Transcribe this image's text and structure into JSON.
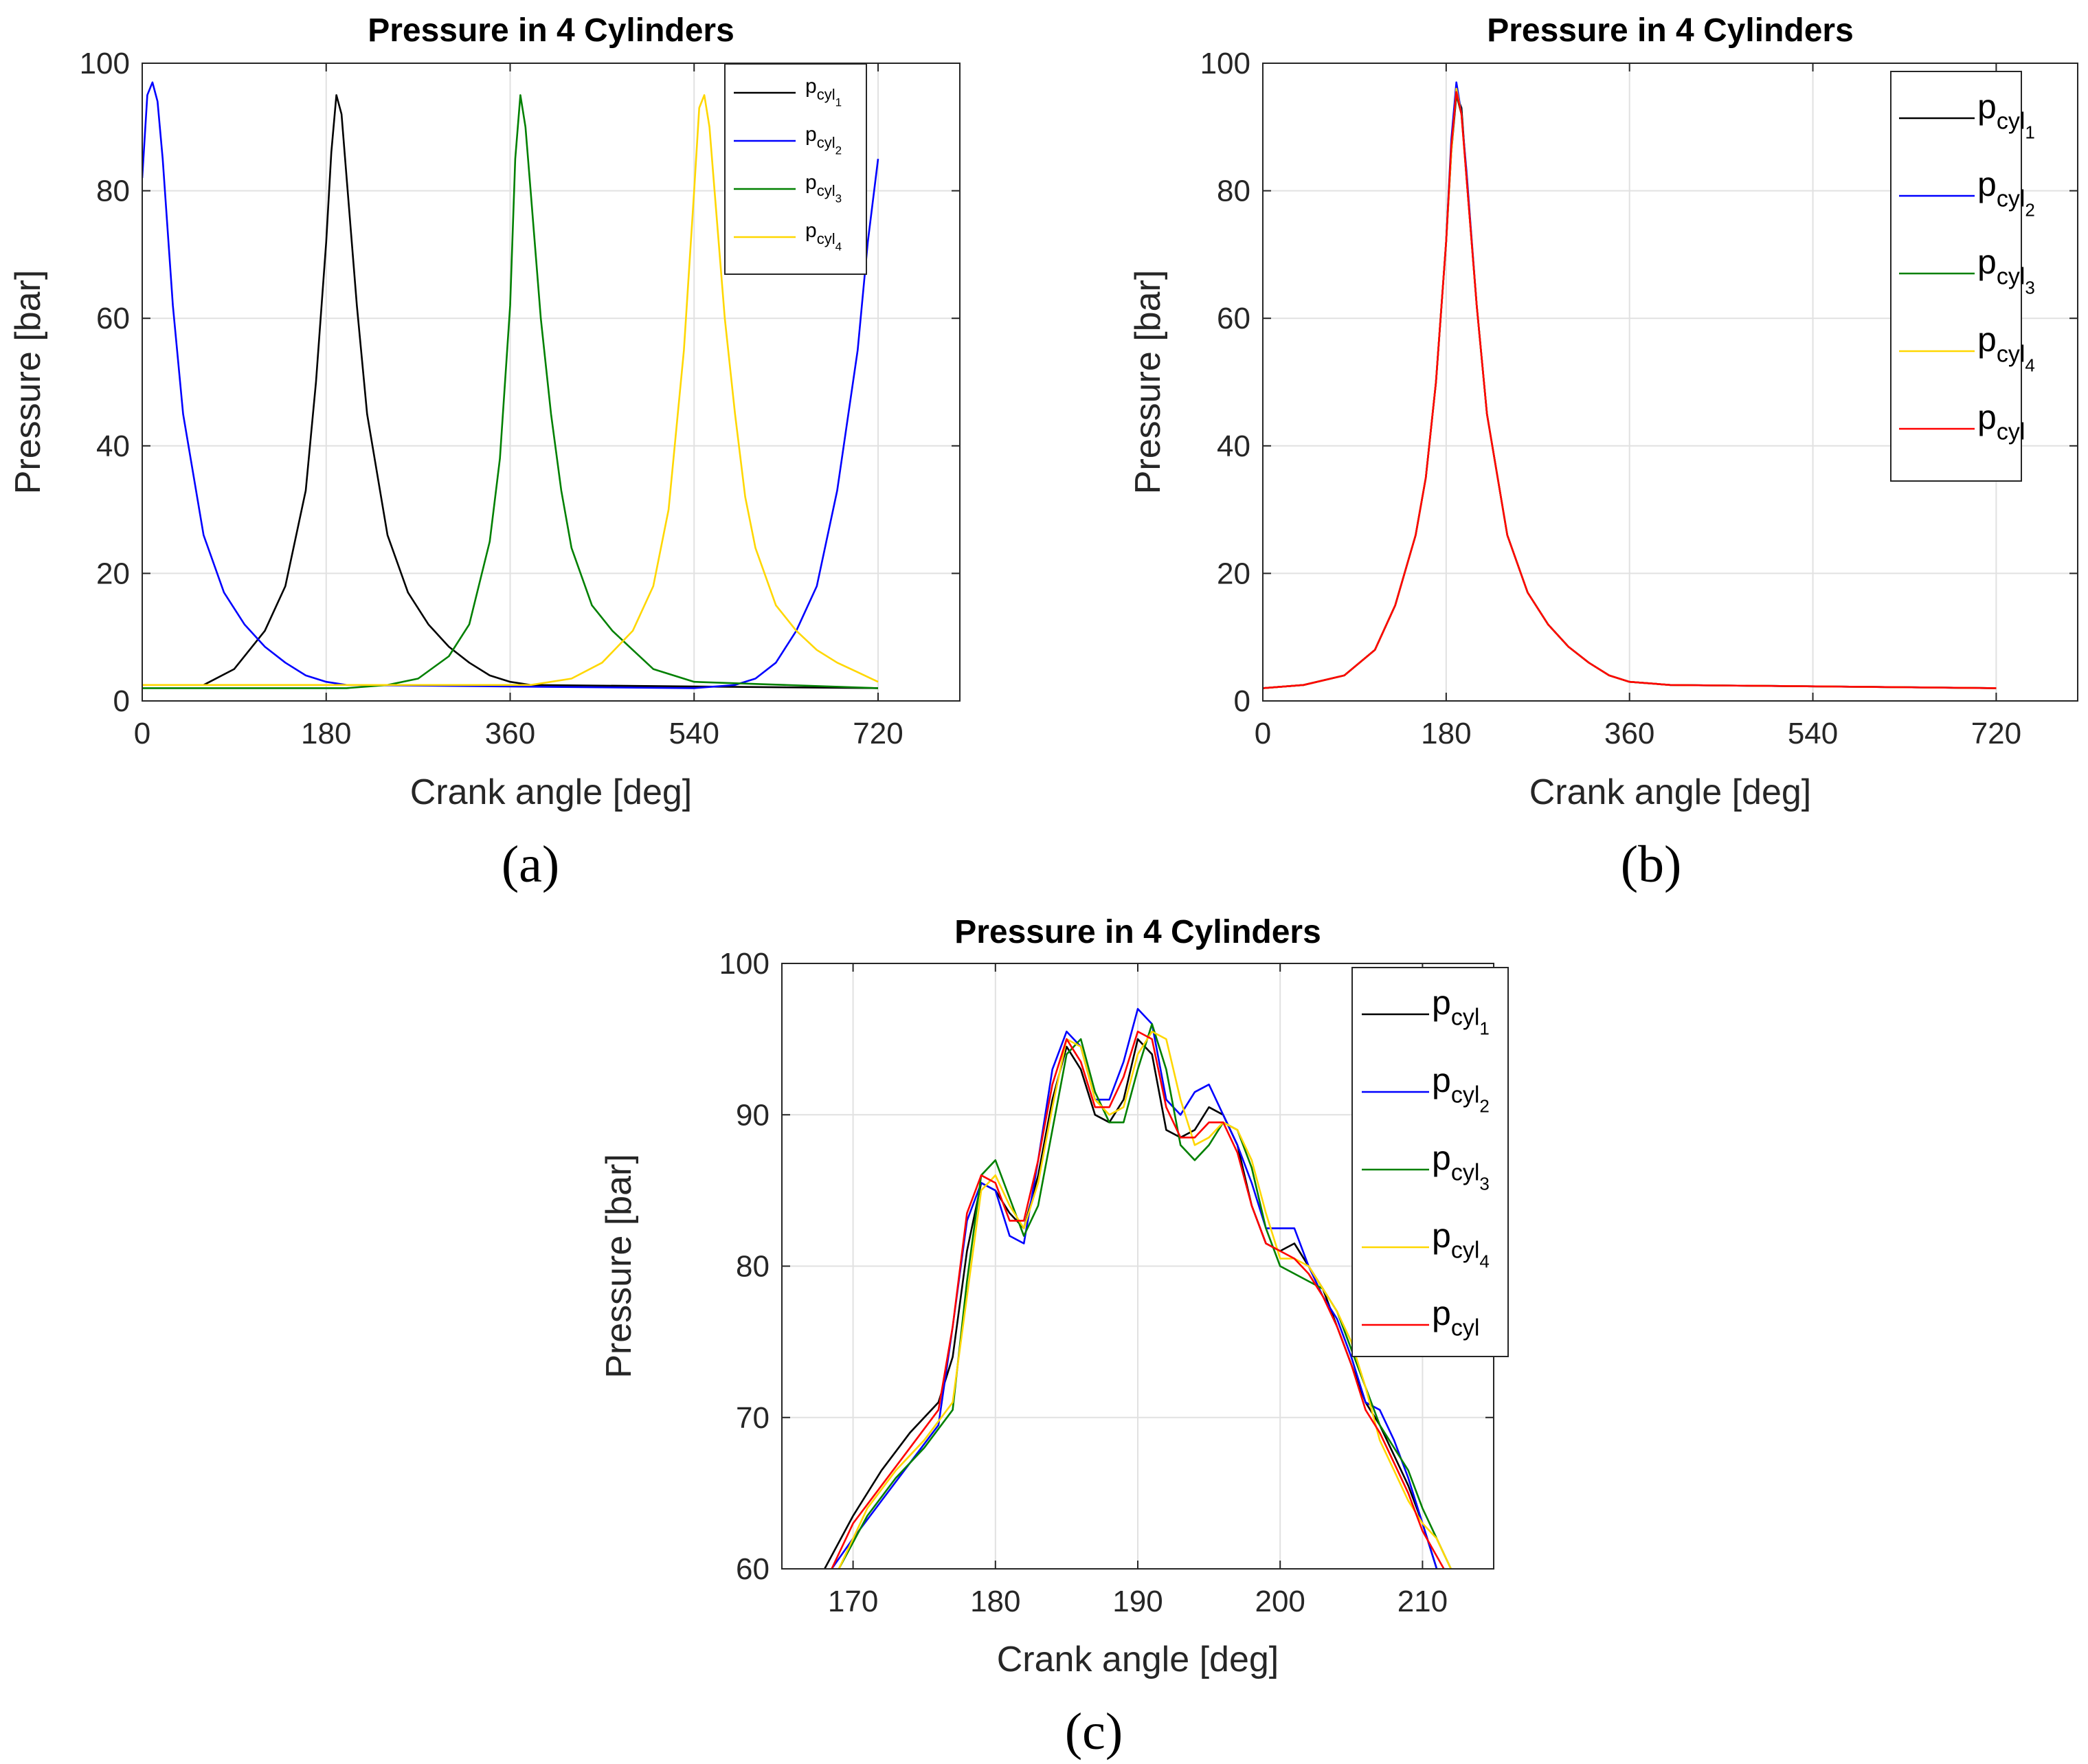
{
  "figure": {
    "caption_a": "(a)",
    "caption_b": "(b)",
    "caption_c": "(c)"
  },
  "colors": {
    "p_cyl1": "#000000",
    "p_cyl2": "#0000ff",
    "p_cyl3": "#008000",
    "p_cyl4": "#ffd700",
    "p_cyl": "#ff0000",
    "grid": "#e1e1e1",
    "axis": "#262626"
  },
  "chart_data": [
    {
      "id": "a",
      "type": "line",
      "title": "Pressure in 4 Cylinders",
      "xlabel": "Crank angle [deg]",
      "ylabel": "Pressure [bar]",
      "xlim": [
        0,
        800
      ],
      "ylim": [
        0,
        100
      ],
      "xticks": [
        0,
        180,
        360,
        540,
        720
      ],
      "yticks": [
        0,
        20,
        40,
        60,
        80,
        100
      ],
      "grid": true,
      "legend_position": "top-right",
      "series": [
        {
          "name": "p_cyl1",
          "label_base": "p",
          "label_sub": "cyl",
          "label_subsub": "1",
          "color_key": "p_cyl1",
          "x": [
            60,
            90,
            120,
            140,
            160,
            170,
            180,
            185,
            190,
            195,
            200,
            210,
            220,
            240,
            260,
            280,
            300,
            320,
            340,
            360,
            380,
            720
          ],
          "y": [
            2.5,
            5,
            11,
            18,
            33,
            50,
            72,
            86,
            95,
            92,
            82,
            62,
            45,
            26,
            17,
            12,
            8.5,
            6,
            4,
            3,
            2.5,
            2
          ]
        },
        {
          "name": "p_cyl2",
          "label_base": "p",
          "label_sub": "cyl",
          "label_subsub": "2",
          "color_key": "p_cyl2",
          "x": [
            0,
            5,
            10,
            15,
            20,
            30,
            40,
            60,
            80,
            100,
            120,
            140,
            160,
            180,
            200,
            540,
            580,
            600,
            620,
            640,
            660,
            680,
            700,
            710,
            720
          ],
          "y": [
            82,
            95,
            97,
            94,
            85,
            62,
            45,
            26,
            17,
            12,
            8.5,
            6,
            4,
            3,
            2.5,
            2,
            2.5,
            3.5,
            6,
            11,
            18,
            33,
            55,
            72,
            85
          ]
        },
        {
          "name": "p_cyl3",
          "label_base": "p",
          "label_sub": "cyl",
          "label_subsub": "3",
          "color_key": "p_cyl3",
          "x": [
            0,
            200,
            240,
            270,
            300,
            320,
            340,
            350,
            360,
            365,
            370,
            375,
            380,
            390,
            400,
            410,
            420,
            440,
            460,
            480,
            500,
            540,
            720
          ],
          "y": [
            2,
            2,
            2.5,
            3.5,
            7,
            12,
            25,
            38,
            62,
            85,
            95,
            90,
            80,
            60,
            45,
            33,
            24,
            15,
            11,
            8,
            5,
            3,
            2
          ]
        },
        {
          "name": "p_cyl4",
          "label_base": "p",
          "label_sub": "cyl",
          "label_subsub": "4",
          "color_key": "p_cyl4",
          "x": [
            0,
            380,
            420,
            450,
            480,
            500,
            515,
            530,
            540,
            545,
            550,
            555,
            560,
            570,
            580,
            590,
            600,
            620,
            640,
            660,
            680,
            700,
            720
          ],
          "y": [
            2.5,
            2.5,
            3.5,
            6,
            11,
            18,
            30,
            55,
            80,
            93,
            95,
            90,
            80,
            60,
            45,
            32,
            24,
            15,
            11,
            8,
            6,
            4.5,
            3
          ]
        }
      ]
    },
    {
      "id": "b",
      "type": "line",
      "title": "Pressure in 4 Cylinders",
      "xlabel": "Crank angle [deg]",
      "ylabel": "Pressure [bar]",
      "xlim": [
        0,
        800
      ],
      "ylim": [
        0,
        100
      ],
      "xticks": [
        0,
        180,
        360,
        540,
        720
      ],
      "yticks": [
        0,
        20,
        40,
        60,
        80,
        100
      ],
      "grid": true,
      "legend_position": "top-right",
      "series": [
        {
          "name": "p_cyl1",
          "label_base": "p",
          "label_sub": "cyl",
          "label_subsub": "1",
          "color_key": "p_cyl1",
          "x": [
            0,
            40,
            80,
            110,
            130,
            150,
            160,
            170,
            180,
            185,
            190,
            195,
            200,
            210,
            220,
            240,
            260,
            280,
            300,
            320,
            340,
            360,
            400,
            720
          ],
          "y": [
            2,
            2.5,
            4,
            8,
            15,
            26,
            35,
            50,
            72,
            86,
            95,
            93,
            82,
            62,
            45,
            26,
            17,
            12,
            8.5,
            6,
            4,
            3,
            2.5,
            2
          ]
        },
        {
          "name": "p_cyl2",
          "label_base": "p",
          "label_sub": "cyl",
          "label_subsub": "2",
          "color_key": "p_cyl2",
          "x": [
            0,
            40,
            80,
            110,
            130,
            150,
            160,
            170,
            180,
            185,
            190,
            195,
            200,
            210,
            220,
            240,
            260,
            280,
            300,
            320,
            340,
            360,
            400,
            720
          ],
          "y": [
            2,
            2.5,
            4,
            8,
            15,
            26,
            35,
            50,
            72,
            88,
            97,
            92,
            83,
            62,
            45,
            26,
            17,
            12,
            8.5,
            6,
            4,
            3,
            2.5,
            2
          ]
        },
        {
          "name": "p_cyl3",
          "label_base": "p",
          "label_sub": "cyl",
          "label_subsub": "3",
          "color_key": "p_cyl3",
          "x": [
            0,
            40,
            80,
            110,
            130,
            150,
            160,
            170,
            180,
            185,
            190,
            195,
            200,
            210,
            220,
            240,
            260,
            280,
            300,
            320,
            340,
            360,
            400,
            720
          ],
          "y": [
            2,
            2.5,
            4,
            8,
            15,
            26,
            35,
            50,
            72,
            87,
            95,
            92,
            82,
            62,
            45,
            26,
            17,
            12,
            8.5,
            6,
            4,
            3,
            2.5,
            2
          ]
        },
        {
          "name": "p_cyl4",
          "label_base": "p",
          "label_sub": "cyl",
          "label_subsub": "4",
          "color_key": "p_cyl4",
          "x": [
            0,
            40,
            80,
            110,
            130,
            150,
            160,
            170,
            180,
            185,
            190,
            195,
            200,
            210,
            220,
            240,
            260,
            280,
            300,
            320,
            340,
            360,
            400,
            720
          ],
          "y": [
            2,
            2.5,
            4,
            8,
            15,
            26,
            35,
            50,
            72,
            86,
            96,
            92,
            82,
            62,
            45,
            26,
            17,
            12,
            8.5,
            6,
            4,
            3,
            2.5,
            2
          ]
        },
        {
          "name": "p_cyl",
          "label_base": "p",
          "label_sub": "cyl",
          "label_subsub": "",
          "color_key": "p_cyl",
          "x": [
            0,
            40,
            80,
            110,
            130,
            150,
            160,
            170,
            180,
            185,
            190,
            195,
            200,
            210,
            220,
            240,
            260,
            280,
            300,
            320,
            340,
            360,
            400,
            720
          ],
          "y": [
            2,
            2.5,
            4,
            8,
            15,
            26,
            35,
            50,
            72,
            87,
            95.5,
            92,
            82,
            62,
            45,
            26,
            17,
            12,
            8.5,
            6,
            4,
            3,
            2.5,
            2
          ]
        }
      ]
    },
    {
      "id": "c",
      "type": "line",
      "title": "Pressure in 4 Cylinders",
      "xlabel": "Crank angle [deg]",
      "ylabel": "Pressure [bar]",
      "xlim": [
        165,
        215
      ],
      "ylim": [
        60,
        100
      ],
      "xticks": [
        170,
        180,
        190,
        200,
        210
      ],
      "yticks": [
        60,
        70,
        80,
        90,
        100
      ],
      "grid": true,
      "legend_position": "top-right",
      "series": [
        {
          "name": "p_cyl1",
          "label_base": "p",
          "label_sub": "cyl",
          "label_subsub": "1",
          "color_key": "p_cyl1",
          "x": [
            168,
            170,
            172,
            174,
            176,
            177,
            178,
            179,
            180,
            181,
            182,
            183,
            184,
            185,
            186,
            187,
            188,
            189,
            190,
            191,
            192,
            193,
            194,
            195,
            196,
            197,
            198,
            199,
            200,
            201,
            202,
            203,
            204,
            205,
            206,
            207,
            208,
            209,
            210,
            211
          ],
          "y": [
            60,
            63.5,
            66.5,
            69,
            71,
            74,
            81,
            85.5,
            85,
            83.5,
            82.5,
            86,
            91,
            94.5,
            93,
            90,
            89.5,
            91,
            95,
            94,
            89,
            88.5,
            89,
            90.5,
            90,
            88,
            84,
            81.5,
            81,
            81.5,
            80,
            78.5,
            76,
            73.5,
            71,
            69.5,
            67.5,
            65.5,
            63,
            60
          ]
        },
        {
          "name": "p_cyl2",
          "label_base": "p",
          "label_sub": "cyl",
          "label_subsub": "2",
          "color_key": "p_cyl2",
          "x": [
            168.5,
            170,
            172,
            174,
            176,
            177,
            178,
            179,
            180,
            181,
            182,
            183,
            184,
            185,
            186,
            187,
            188,
            189,
            190,
            191,
            192,
            193,
            194,
            195,
            196,
            197,
            198,
            199,
            200,
            201,
            202,
            203,
            204,
            205,
            206,
            207,
            208,
            209,
            210,
            211
          ],
          "y": [
            60,
            62,
            64.5,
            67,
            69.5,
            76,
            83,
            85.5,
            85,
            82,
            81.5,
            87,
            93,
            95.5,
            94.5,
            91,
            91,
            93.5,
            97,
            96,
            91,
            90,
            91.5,
            92,
            90,
            88,
            85.5,
            82.5,
            82.5,
            82.5,
            80,
            78,
            76.5,
            74,
            71,
            70.5,
            68.5,
            66,
            63,
            60
          ]
        },
        {
          "name": "p_cyl3",
          "label_base": "p",
          "label_sub": "cyl",
          "label_subsub": "3",
          "color_key": "p_cyl3",
          "x": [
            169,
            171,
            173,
            175,
            177,
            178,
            179,
            180,
            181,
            182,
            183,
            184,
            185,
            186,
            187,
            188,
            189,
            190,
            191,
            192,
            193,
            194,
            195,
            196,
            197,
            198,
            199,
            200,
            201,
            202,
            203,
            204,
            205,
            206,
            207,
            208,
            209,
            210,
            211,
            212
          ],
          "y": [
            60,
            63.5,
            66,
            68,
            70.5,
            79,
            86,
            87,
            84.5,
            82,
            84,
            89,
            94,
            95,
            91.5,
            89.5,
            89.5,
            93,
            96,
            93,
            88,
            87,
            88,
            89.5,
            89,
            86.5,
            82.5,
            80,
            79.5,
            79,
            78.5,
            77,
            74.5,
            72,
            69.5,
            68,
            66.5,
            64,
            62,
            60
          ]
        },
        {
          "name": "p_cyl4",
          "label_base": "p",
          "label_sub": "cyl",
          "label_subsub": "4",
          "color_key": "p_cyl4",
          "x": [
            169,
            171,
            173,
            175,
            177,
            178,
            179,
            180,
            181,
            182,
            183,
            184,
            185,
            186,
            187,
            188,
            189,
            190,
            191,
            192,
            193,
            194,
            195,
            196,
            197,
            198,
            199,
            200,
            201,
            202,
            203,
            204,
            205,
            206,
            207,
            208,
            209,
            210,
            211,
            212
          ],
          "y": [
            60,
            64,
            66.5,
            68.5,
            71,
            78,
            85,
            86,
            84,
            82.5,
            85.5,
            90.5,
            95,
            94.5,
            91,
            90,
            90.5,
            94,
            95.5,
            95,
            91,
            88,
            88.5,
            89.5,
            89,
            87,
            83.5,
            80.5,
            80.5,
            80,
            78.5,
            77,
            75,
            72,
            68.5,
            66.5,
            64.5,
            63,
            62,
            60
          ]
        },
        {
          "name": "p_cyl",
          "label_base": "p",
          "label_sub": "cyl",
          "label_subsub": "",
          "color_key": "p_cyl",
          "x": [
            168.5,
            170,
            172,
            174,
            176,
            177,
            178,
            179,
            180,
            181,
            182,
            183,
            184,
            185,
            186,
            187,
            188,
            189,
            190,
            191,
            192,
            193,
            194,
            195,
            196,
            197,
            198,
            199,
            200,
            201,
            202,
            203,
            204,
            205,
            206,
            207,
            208,
            209,
            210,
            211.5
          ],
          "y": [
            60,
            63,
            65.5,
            68,
            70.5,
            76,
            83.5,
            86,
            85.5,
            83,
            83,
            87,
            92,
            95,
            93.5,
            90.5,
            90.5,
            92.5,
            95.5,
            95,
            90.5,
            88.5,
            88.5,
            89.5,
            89.5,
            87.5,
            84,
            81.5,
            81,
            80.5,
            79.5,
            78,
            76,
            73.5,
            70.5,
            69,
            67,
            65,
            62.5,
            60
          ]
        }
      ]
    }
  ]
}
